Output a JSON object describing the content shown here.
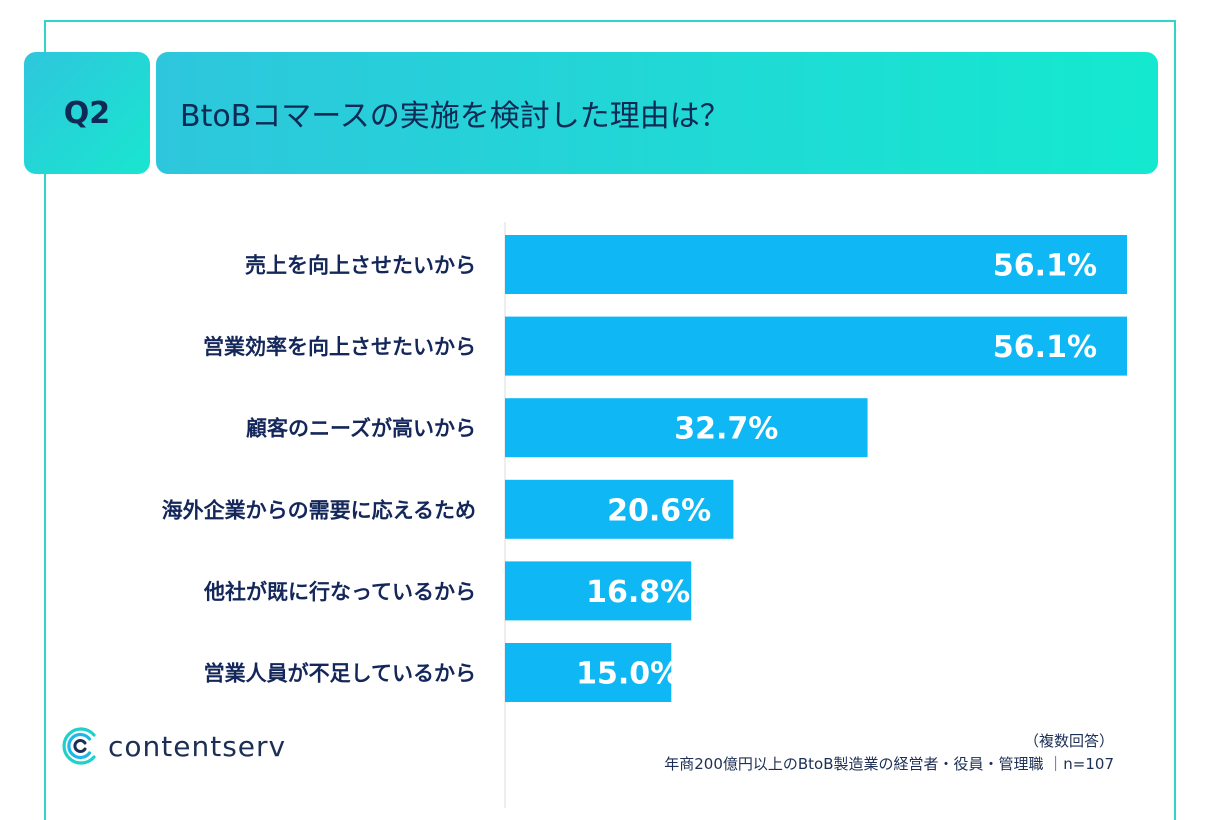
{
  "header": {
    "question_no": "Q2",
    "question": "BtoBコマースの実施を検討した理由は？"
  },
  "chart_data": {
    "type": "bar",
    "orientation": "horizontal",
    "categories": [
      "売上を向上させたいから",
      "営業効率を向上させたいから",
      "顧客のニーズが高いから",
      "海外企業からの需要に応えるため",
      "他社が既に行なっているから",
      "営業人員が不足しているから"
    ],
    "values": [
      56.1,
      56.1,
      32.7,
      20.6,
      16.8,
      15.0
    ],
    "value_labels": [
      "56.1%",
      "56.1%",
      "32.7%",
      "20.6%",
      "16.8%",
      "15.0%"
    ],
    "xlim": [
      0,
      56.1
    ],
    "grid": false,
    "bar_color": "#0fb8f5"
  },
  "footer": {
    "brand": "contentserv",
    "note_multi": "（複数回答）",
    "note_sample": "年商200億円以上のBtoB製造業の経営者・役員・管理職 ｜n=107"
  },
  "colors": {
    "accent": "#2fd6c6",
    "text_dark": "#14275a"
  }
}
